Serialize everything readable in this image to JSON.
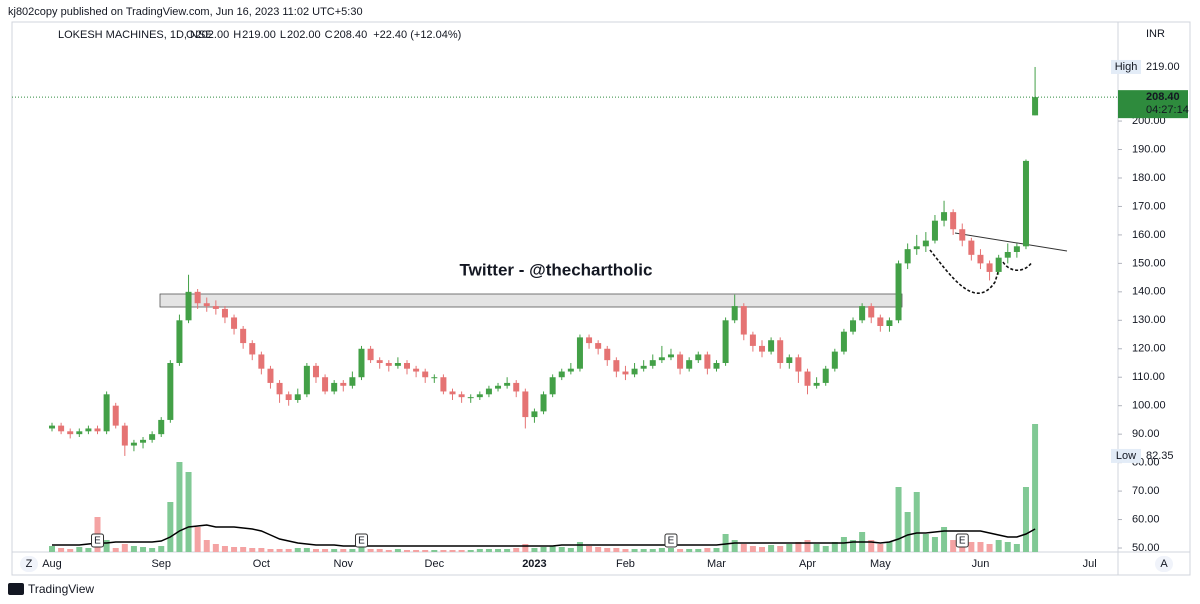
{
  "published": "kj802copy published on TradingView.com, Jun 16, 2023 11:02 UTC+5:30",
  "footer": "TradingView",
  "buttons": {
    "left": "Z",
    "right": "A"
  },
  "chart_data": {
    "type": "candlestick",
    "title": "LOKESH MACHINES, 1D, NSE",
    "ohlc_legend": [
      {
        "key": "O",
        "text": "202.00"
      },
      {
        "key": "H",
        "text": "219.00"
      },
      {
        "key": "L",
        "text": "202.00"
      },
      {
        "key": "C",
        "text": "208.40"
      }
    ],
    "change": "+22.40 (+12.04%)",
    "currency": "INR",
    "annotation": "Twitter - @thechartholic",
    "up_color": "#43a047",
    "down_color": "#e57373",
    "volume_up_color": "#81c995",
    "volume_down_color": "#f4a3a3",
    "ma_color": "#000000",
    "categories": [
      "Aug",
      null,
      null,
      null,
      null,
      null,
      null,
      null,
      null,
      null,
      null,
      null,
      "Sep",
      null,
      null,
      null,
      null,
      null,
      null,
      null,
      null,
      null,
      null,
      "Oct",
      null,
      null,
      null,
      null,
      null,
      null,
      null,
      null,
      "Nov",
      null,
      null,
      null,
      null,
      null,
      null,
      null,
      null,
      null,
      "Dec",
      null,
      null,
      null,
      null,
      null,
      null,
      null,
      null,
      null,
      null,
      "2023",
      null,
      null,
      null,
      null,
      null,
      null,
      null,
      null,
      null,
      "Feb",
      null,
      null,
      null,
      null,
      null,
      null,
      null,
      null,
      null,
      "Mar",
      null,
      null,
      null,
      null,
      null,
      null,
      null,
      null,
      null,
      "Apr",
      null,
      null,
      null,
      null,
      null,
      null,
      null,
      "May",
      null,
      null,
      null,
      null,
      null,
      null,
      null,
      null,
      null,
      null,
      "Jun",
      null,
      null,
      null,
      null,
      null,
      null,
      null,
      null,
      null,
      null,
      null,
      "Jul",
      null,
      null,
      null
    ],
    "open": [
      92,
      93,
      91,
      90,
      91,
      92,
      91,
      100,
      93,
      86,
      87,
      88,
      90,
      95,
      115,
      130,
      140,
      136,
      135,
      134,
      131,
      127,
      122,
      118,
      113,
      108,
      104,
      102,
      104,
      114,
      110,
      105,
      108,
      107,
      110,
      120,
      116,
      115,
      114,
      115,
      113,
      112,
      110,
      110,
      105,
      104,
      103,
      103,
      104,
      106,
      107,
      108,
      105,
      96,
      98,
      104,
      110,
      112,
      113,
      124,
      122,
      120,
      116,
      112,
      111,
      113,
      114,
      116,
      117,
      118,
      113,
      116,
      118,
      113,
      115,
      130,
      135,
      125,
      121,
      119,
      123,
      115,
      117,
      112,
      107,
      108,
      113,
      119,
      126,
      130,
      135,
      131,
      128,
      130,
      150,
      155,
      156,
      158,
      165,
      168,
      162,
      158,
      153,
      150,
      147,
      152,
      154,
      156,
      202,
      null,
      null,
      null,
      null,
      null,
      null,
      null,
      null,
      null
    ],
    "high": [
      94,
      94,
      92,
      92,
      93,
      93,
      105,
      101,
      94,
      88,
      89,
      91,
      96,
      116,
      132,
      146,
      141,
      138,
      137,
      135,
      132,
      128,
      123,
      119,
      114,
      109,
      105,
      106,
      115,
      115,
      111,
      109,
      109,
      112,
      121,
      121,
      117,
      116,
      117,
      116,
      114,
      113,
      111,
      111,
      106,
      105,
      104,
      105,
      107,
      108,
      110,
      109,
      106,
      99,
      105,
      111,
      113,
      115,
      125,
      125,
      123,
      121,
      117,
      114,
      115,
      116,
      118,
      121,
      120,
      119,
      117,
      119,
      119,
      116,
      131,
      139,
      136,
      126,
      123,
      124,
      124,
      118,
      118,
      113,
      110,
      114,
      120,
      127,
      131,
      136,
      136,
      132,
      131,
      151,
      157,
      160,
      161,
      167,
      172,
      169,
      164,
      159,
      155,
      151,
      153,
      157,
      157,
      186.5,
      219,
      null,
      null,
      null,
      null,
      null,
      null,
      null,
      null,
      null
    ],
    "low": [
      91,
      90,
      88.5,
      89,
      90,
      90,
      90,
      92,
      82.35,
      84,
      85,
      87,
      89,
      94,
      114,
      129,
      134,
      133,
      132,
      129,
      125,
      120,
      116,
      111,
      106,
      101,
      100,
      101,
      103,
      108,
      104,
      104,
      105,
      106,
      109,
      115,
      113,
      112,
      113,
      111,
      110,
      108,
      108,
      104,
      102,
      101,
      101,
      102,
      103,
      105,
      106,
      103,
      92,
      94,
      97,
      103,
      109,
      111,
      112,
      120,
      118,
      114,
      110,
      109,
      110,
      112,
      113,
      115,
      116,
      111,
      112,
      115,
      111,
      112,
      114,
      129,
      123,
      119,
      117,
      118,
      113,
      113,
      108,
      104,
      106,
      107,
      112,
      118,
      125,
      129,
      129,
      126,
      126,
      129,
      148,
      153,
      154,
      157,
      163,
      160,
      156,
      151,
      148,
      144,
      146,
      150,
      152,
      155,
      202,
      null,
      null,
      null,
      null,
      null,
      null,
      null,
      null,
      null
    ],
    "close": [
      93,
      91,
      90,
      91,
      92,
      91,
      104,
      93,
      86,
      87,
      88,
      90,
      95,
      115,
      130,
      140,
      136,
      135,
      134,
      131,
      127,
      122,
      118,
      113,
      108,
      104,
      102,
      104,
      114,
      110,
      105,
      108,
      107,
      110,
      120,
      116,
      115,
      114,
      115,
      113,
      112,
      110,
      110,
      105,
      104,
      103,
      103,
      104,
      106,
      107,
      108,
      105,
      96,
      98,
      104,
      110,
      112,
      113,
      124,
      122,
      120,
      116,
      112,
      111,
      113,
      114,
      116,
      117,
      118,
      113,
      116,
      118,
      113,
      115,
      130,
      135,
      125,
      121,
      119,
      123,
      115,
      117,
      112,
      107,
      108,
      113,
      119,
      126,
      130,
      135,
      131,
      128,
      130,
      150,
      155,
      156,
      158,
      165,
      168,
      162,
      158,
      153,
      150,
      147,
      152,
      154,
      156,
      186,
      208.4,
      null,
      null,
      null,
      null,
      null,
      null,
      null,
      null,
      null
    ],
    "volume": [
      6,
      4,
      3,
      5,
      4,
      35,
      12,
      4,
      8,
      6,
      5,
      4,
      6,
      50,
      90,
      80,
      25,
      12,
      8,
      6,
      5,
      5,
      4,
      4,
      3,
      3,
      3,
      4,
      4,
      3,
      3,
      3,
      3,
      3,
      5,
      3,
      3,
      2,
      3,
      2,
      2,
      2,
      2,
      2,
      2,
      2,
      2,
      3,
      3,
      3,
      3,
      4,
      8,
      4,
      5,
      6,
      5,
      4,
      10,
      6,
      5,
      4,
      4,
      3,
      3,
      3,
      3,
      4,
      4,
      3,
      3,
      3,
      4,
      4,
      18,
      12,
      8,
      6,
      5,
      7,
      6,
      8,
      10,
      12,
      8,
      6,
      10,
      15,
      12,
      20,
      12,
      8,
      10,
      65,
      40,
      60,
      18,
      15,
      25,
      12,
      15,
      10,
      10,
      8,
      12,
      10,
      8,
      65,
      128,
      null,
      null,
      null,
      null,
      null,
      null,
      null,
      null,
      null
    ],
    "volume_ma": [
      4,
      4,
      4,
      4,
      5,
      6,
      6,
      7,
      7,
      7,
      7,
      7,
      8,
      12,
      18,
      22,
      23,
      24,
      22,
      22,
      22,
      21,
      20,
      18,
      14,
      10,
      8,
      6,
      5,
      4,
      4,
      4,
      3,
      3,
      3,
      3,
      3,
      3,
      3,
      3,
      3,
      3,
      3,
      3,
      3,
      3,
      3,
      3,
      3,
      3,
      3,
      3,
      3,
      3,
      3,
      3,
      4,
      4,
      4,
      4,
      4,
      4,
      4,
      4,
      4,
      4,
      4,
      4,
      4,
      4,
      4,
      4,
      4,
      4,
      5,
      6,
      6,
      6,
      6,
      6,
      6,
      6,
      6,
      6,
      6,
      6,
      6,
      6,
      7,
      7,
      7,
      6,
      7,
      10,
      14,
      16,
      16,
      17,
      18,
      18,
      18,
      18,
      18,
      16,
      14,
      12,
      12,
      15,
      20,
      null,
      null,
      null,
      null,
      null,
      null,
      null,
      null,
      null
    ],
    "volume_ylim": [
      0,
      530
    ],
    "ylim": [
      48.6,
      234.8
    ],
    "yticks": [
      {
        "value": 50,
        "label": "50.00"
      },
      {
        "value": 60,
        "label": "60.00"
      },
      {
        "value": 70,
        "label": "70.00"
      },
      {
        "value": 80,
        "label": "80.00"
      },
      {
        "value": 90,
        "label": "90.00"
      },
      {
        "value": 100,
        "label": "100.00"
      },
      {
        "value": 110,
        "label": "110.00"
      },
      {
        "value": 120,
        "label": "120.00"
      },
      {
        "value": 130,
        "label": "130.00"
      },
      {
        "value": 140,
        "label": "140.00"
      },
      {
        "value": 150,
        "label": "150.00"
      },
      {
        "value": 160,
        "label": "160.00"
      },
      {
        "value": 170,
        "label": "170.00"
      },
      {
        "value": 180,
        "label": "180.00"
      },
      {
        "value": 190,
        "label": "190.00"
      },
      {
        "value": 200,
        "label": "200.00"
      }
    ],
    "high_marker": {
      "text": "High",
      "value": 219,
      "value_label": "219.00"
    },
    "low_marker": {
      "text": "Low",
      "value": 82.35,
      "value_label": "82.35"
    },
    "last_price": {
      "value": 208.4,
      "value_label": "208.40",
      "countdown": "04:27:14",
      "color": "#2e8b3d"
    },
    "earnings": [
      {
        "label": "E",
        "at": 5
      },
      {
        "label": "E",
        "at": 34
      },
      {
        "label": "E",
        "at": 68
      },
      {
        "label": "E",
        "at": 100
      }
    ]
  }
}
